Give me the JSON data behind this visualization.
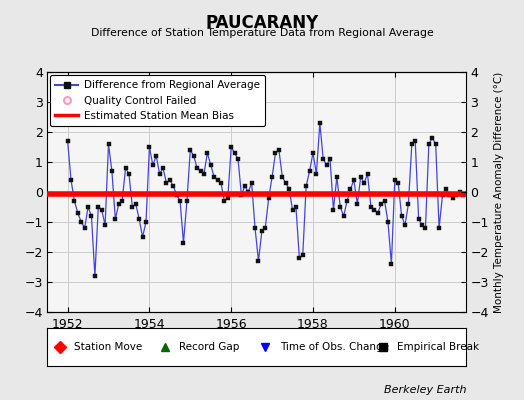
{
  "title": "PAUCARANY",
  "subtitle": "Difference of Station Temperature Data from Regional Average",
  "ylabel_right": "Monthly Temperature Anomaly Difference (°C)",
  "xlim": [
    1951.5,
    1961.75
  ],
  "ylim": [
    -4,
    4
  ],
  "bias_value": -0.05,
  "credit": "Berkeley Earth",
  "bg_color": "#e8e8e8",
  "plot_bg_color": "#f5f5f5",
  "line_color": "#4444dd",
  "marker_color": "#111111",
  "bias_color": "#ff0000",
  "x_ticks": [
    1952,
    1954,
    1956,
    1958,
    1960
  ],
  "y_ticks": [
    -4,
    -3,
    -2,
    -1,
    0,
    1,
    2,
    3,
    4
  ],
  "data": {
    "times": [
      1952.0,
      1952.083,
      1952.167,
      1952.25,
      1952.333,
      1952.417,
      1952.5,
      1952.583,
      1952.667,
      1952.75,
      1952.833,
      1952.917,
      1953.0,
      1953.083,
      1953.167,
      1953.25,
      1953.333,
      1953.417,
      1953.5,
      1953.583,
      1953.667,
      1953.75,
      1953.833,
      1953.917,
      1954.0,
      1954.083,
      1954.167,
      1954.25,
      1954.333,
      1954.417,
      1954.5,
      1954.583,
      1954.667,
      1954.75,
      1954.833,
      1954.917,
      1955.0,
      1955.083,
      1955.167,
      1955.25,
      1955.333,
      1955.417,
      1955.5,
      1955.583,
      1955.667,
      1955.75,
      1955.833,
      1955.917,
      1956.0,
      1956.083,
      1956.167,
      1956.25,
      1956.333,
      1956.417,
      1956.5,
      1956.583,
      1956.667,
      1956.75,
      1956.833,
      1956.917,
      1957.0,
      1957.083,
      1957.167,
      1957.25,
      1957.333,
      1957.417,
      1957.5,
      1957.583,
      1957.667,
      1957.75,
      1957.833,
      1957.917,
      1958.0,
      1958.083,
      1958.167,
      1958.25,
      1958.333,
      1958.417,
      1958.5,
      1958.583,
      1958.667,
      1958.75,
      1958.833,
      1958.917,
      1959.0,
      1959.083,
      1959.167,
      1959.25,
      1959.333,
      1959.417,
      1959.5,
      1959.583,
      1959.667,
      1959.75,
      1959.833,
      1959.917,
      1960.0,
      1960.083,
      1960.167,
      1960.25,
      1960.333,
      1960.417,
      1960.5,
      1960.583,
      1960.667,
      1960.75,
      1960.833,
      1960.917,
      1961.0,
      1961.083,
      1961.167,
      1961.25,
      1961.333,
      1961.417,
      1961.5,
      1961.583,
      1961.667
    ],
    "values": [
      1.7,
      0.4,
      -0.3,
      -0.7,
      -1.0,
      -1.2,
      -0.5,
      -0.8,
      -2.8,
      -0.5,
      -0.6,
      -1.1,
      1.6,
      0.7,
      -0.9,
      -0.4,
      -0.3,
      0.8,
      0.6,
      -0.5,
      -0.4,
      -0.9,
      -1.5,
      -1.0,
      1.5,
      0.9,
      1.2,
      0.6,
      0.8,
      0.3,
      0.4,
      0.2,
      -0.1,
      -0.3,
      -1.7,
      -0.3,
      1.4,
      1.2,
      0.8,
      0.7,
      0.6,
      1.3,
      0.9,
      0.5,
      0.4,
      0.3,
      -0.3,
      -0.2,
      1.5,
      1.3,
      1.1,
      -0.1,
      0.2,
      0.0,
      0.3,
      -1.2,
      -2.3,
      -1.3,
      -1.2,
      -0.2,
      0.5,
      1.3,
      1.4,
      0.5,
      0.3,
      0.1,
      -0.6,
      -0.5,
      -2.2,
      -2.1,
      0.2,
      0.7,
      1.3,
      0.6,
      2.3,
      1.1,
      0.9,
      1.1,
      -0.6,
      0.5,
      -0.5,
      -0.8,
      -0.3,
      0.1,
      0.4,
      -0.4,
      0.5,
      0.3,
      0.6,
      -0.5,
      -0.6,
      -0.7,
      -0.4,
      -0.3,
      -1.0,
      -2.4,
      0.4,
      0.3,
      -0.8,
      -1.1,
      -0.4,
      1.6,
      1.7,
      -0.9,
      -1.1,
      -1.2,
      1.6,
      1.8,
      1.6,
      -1.2,
      -0.1,
      0.1,
      -0.1,
      -0.2,
      -0.1,
      0.0,
      -0.1
    ]
  }
}
